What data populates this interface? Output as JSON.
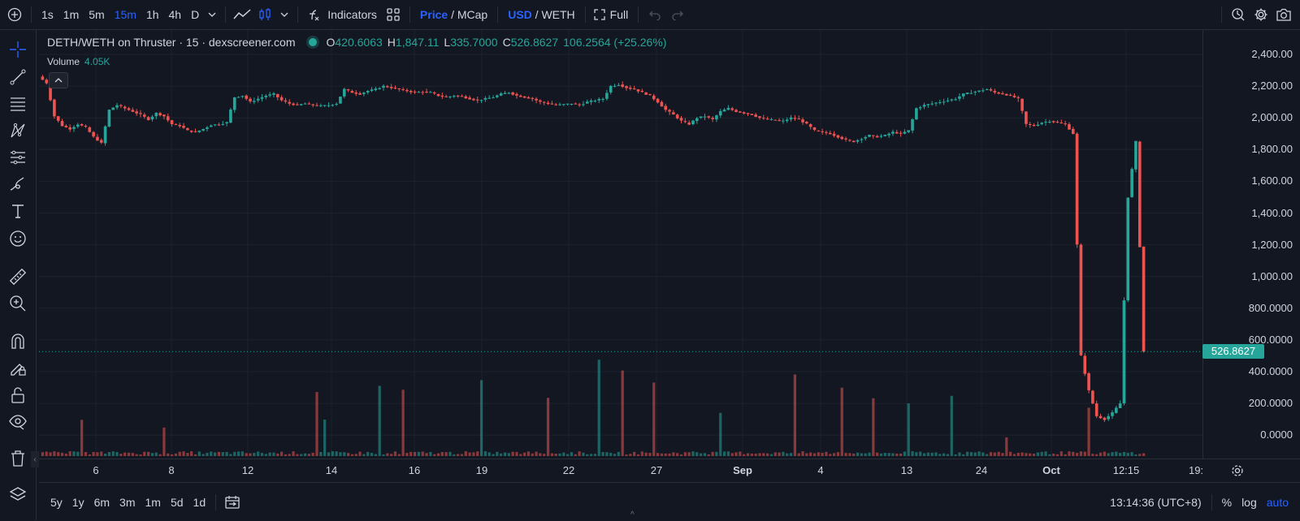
{
  "topbar": {
    "timeframes": [
      "1s",
      "1m",
      "5m",
      "15m",
      "1h",
      "4h",
      "D"
    ],
    "active_timeframe": "15m",
    "indicators_label": "Indicators",
    "price_label": "Price",
    "mcap_label": "MCap",
    "usd_label": "USD",
    "weth_label": "WETH",
    "slash": "/",
    "full_label": "Full"
  },
  "legend": {
    "title": "DETH/WETH on Thruster · 15 · dexscreener.com",
    "open_label": "O",
    "open": "420.6063",
    "high_label": "H",
    "high": "1,847.11",
    "low_label": "L",
    "low": "335.7000",
    "close_label": "C",
    "close": "526.8627",
    "change": "106.2564 (+25.26%)",
    "volume_label": "Volume",
    "volume": "4.05K"
  },
  "price_scale": {
    "labels": [
      "2,400.00",
      "2,200.00",
      "2,000.00",
      "1,800.00",
      "1,600.00",
      "1,400.00",
      "1,200.00",
      "1,000.00",
      "800.0000",
      "600.0000",
      "400.0000",
      "200.0000",
      "0.0000"
    ],
    "current_price": "526.8627"
  },
  "time_scale": {
    "labels": [
      {
        "text": "6",
        "bold": false
      },
      {
        "text": "8",
        "bold": false
      },
      {
        "text": "12",
        "bold": false
      },
      {
        "text": "14",
        "bold": false
      },
      {
        "text": "16",
        "bold": false
      },
      {
        "text": "19",
        "bold": false
      },
      {
        "text": "22",
        "bold": false
      },
      {
        "text": "27",
        "bold": false
      },
      {
        "text": "Sep",
        "bold": true
      },
      {
        "text": "4",
        "bold": false
      },
      {
        "text": "13",
        "bold": false
      },
      {
        "text": "24",
        "bold": false
      },
      {
        "text": "Oct",
        "bold": true
      },
      {
        "text": "12:15",
        "bold": false
      },
      {
        "text": "19:",
        "bold": false
      }
    ]
  },
  "bottombar": {
    "ranges": [
      "5y",
      "1y",
      "6m",
      "3m",
      "1m",
      "5d",
      "1d"
    ],
    "clock": "13:14:36 (UTC+8)",
    "percent_label": "%",
    "log_label": "log",
    "auto_label": "auto"
  },
  "colors": {
    "up": "#26a69a",
    "down": "#ef5350",
    "accent": "#2962ff",
    "bg": "#131722",
    "grid": "#1e222d"
  },
  "chart_data": {
    "type": "candlestick",
    "price_ylim": [
      -100,
      2500
    ],
    "price_path": [
      2260,
      2220,
      2010,
      1950,
      1930,
      1960,
      1940,
      1880,
      1840,
      2050,
      2080,
      2060,
      2040,
      2020,
      1990,
      2030,
      2010,
      1960,
      1950,
      1920,
      1910,
      1930,
      1955,
      1960,
      1970,
      2130,
      2140,
      2100,
      2120,
      2140,
      2150,
      2110,
      2090,
      2080,
      2090,
      2080,
      2075,
      2080,
      2090,
      2180,
      2160,
      2150,
      2170,
      2180,
      2200,
      2190,
      2180,
      2170,
      2160,
      2165,
      2160,
      2140,
      2130,
      2140,
      2135,
      2120,
      2110,
      2120,
      2130,
      2150,
      2160,
      2140,
      2130,
      2120,
      2100,
      2090,
      2080,
      2085,
      2090,
      2080,
      2100,
      2110,
      2120,
      2200,
      2210,
      2190,
      2180,
      2160,
      2140,
      2100,
      2050,
      2020,
      1980,
      1960,
      2000,
      2010,
      1990,
      2040,
      2060,
      2040,
      2030,
      2020,
      2000,
      1990,
      1985,
      1980,
      2000,
      1990,
      1960,
      1920,
      1910,
      1900,
      1880,
      1860,
      1850,
      1870,
      1890,
      1880,
      1890,
      1910,
      1900,
      1920,
      2060,
      2080,
      2090,
      2100,
      2110,
      2120,
      2150,
      2160,
      2170,
      2180,
      2160,
      2150,
      2140,
      2120,
      1960,
      1950,
      1970,
      1980,
      1970,
      1960,
      1900,
      500,
      280,
      120,
      100,
      140,
      200,
      1500,
      1850,
      527
    ],
    "volume_ylim": [
      0,
      5000
    ],
    "volume_note": "volume bars drawn from price bar indices"
  }
}
